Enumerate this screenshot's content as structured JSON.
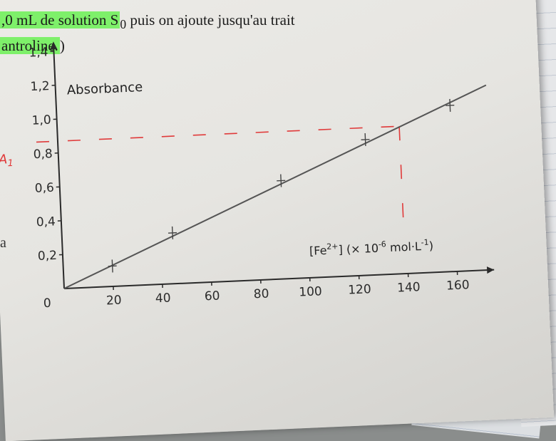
{
  "document": {
    "line_1_highlight": ",0 mL de solution S",
    "line_1_subscript": "0",
    "line_1_rest": " puis on ajoute jusqu'au trait",
    "line_2_highlight": "antroline.",
    "line_2_rest": ")",
    "side_letter": "a"
  },
  "chart_data": {
    "type": "line",
    "ylabel": "Absorbance",
    "xlabel_base": "[Fe",
    "xlabel_sup": "2+",
    "xlabel_rest": "] (× 10",
    "xlabel_exp": "-6",
    "xlabel_unit": " mol·L",
    "xlabel_unit_exp": "-1",
    "xlabel_close": ")",
    "origin_label": "0",
    "x_ticks": [
      20,
      40,
      60,
      80,
      100,
      120,
      140,
      160
    ],
    "x_tick_labels": [
      "20",
      "40",
      "60",
      "80",
      "100",
      "120",
      "140",
      "160"
    ],
    "y_ticks": [
      0.2,
      0.4,
      0.6,
      0.8,
      1.0,
      1.2,
      1.4
    ],
    "y_tick_labels": [
      "0,2",
      "0,4",
      "0,6",
      "0,8",
      "1,0",
      "1,2",
      "1,4"
    ],
    "xlim": [
      0,
      175
    ],
    "ylim": [
      0,
      1.45
    ],
    "points": [
      {
        "x": 20,
        "y": 0.12
      },
      {
        "x": 45,
        "y": 0.3
      },
      {
        "x": 90,
        "y": 0.58
      },
      {
        "x": 125,
        "y": 0.8
      },
      {
        "x": 160,
        "y": 0.98
      }
    ],
    "fit_line": {
      "x": [
        0,
        175
      ],
      "y": [
        0,
        1.09
      ]
    },
    "annotation": {
      "label": "A",
      "label_sub": "1",
      "y": 0.87,
      "x": 139,
      "color": "#e03a3a"
    },
    "grid": false,
    "legend": "none"
  }
}
